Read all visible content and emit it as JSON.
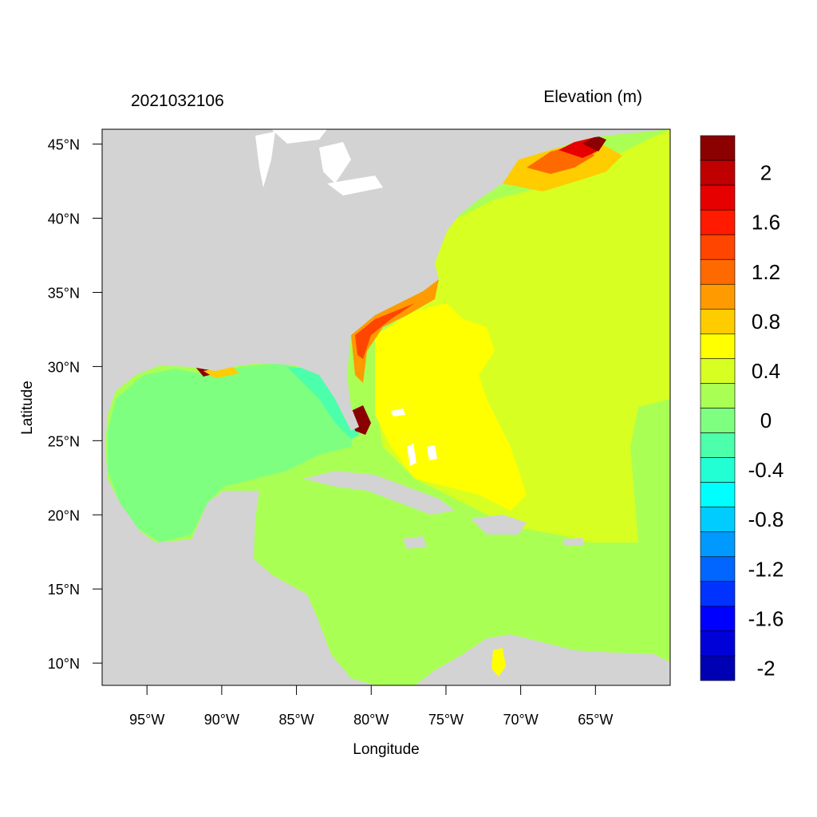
{
  "figure": {
    "title_left": "2021032106",
    "title_right": "Elevation (m)",
    "xlabel": "Longitude",
    "ylabel": "Latitude"
  },
  "map": {
    "lon_range": [
      -98,
      -60
    ],
    "lat_range": [
      8.5,
      46
    ],
    "x_ticks": [
      {
        "lon": -95,
        "label": "95°W"
      },
      {
        "lon": -90,
        "label": "90°W"
      },
      {
        "lon": -85,
        "label": "85°W"
      },
      {
        "lon": -80,
        "label": "80°W"
      },
      {
        "lon": -75,
        "label": "75°W"
      },
      {
        "lon": -70,
        "label": "70°W"
      },
      {
        "lon": -65,
        "label": "65°W"
      }
    ],
    "y_ticks": [
      {
        "lat": 45,
        "label": "45°N"
      },
      {
        "lat": 40,
        "label": "40°N"
      },
      {
        "lat": 35,
        "label": "35°N"
      },
      {
        "lat": 30,
        "label": "30°N"
      },
      {
        "lat": 25,
        "label": "25°N"
      },
      {
        "lat": 20,
        "label": "20°N"
      },
      {
        "lat": 15,
        "label": "15°N"
      },
      {
        "lat": 10,
        "label": "10°N"
      }
    ],
    "land_color": "#d3d3d3",
    "water_default_color": "#aaff55"
  },
  "colorbar": {
    "levels_top_to_bottom": [
      {
        "color": "#8b0000",
        "label": ""
      },
      {
        "color": "#c00000",
        "label": "2"
      },
      {
        "color": "#e60000",
        "label": ""
      },
      {
        "color": "#ff1a00",
        "label": "1.6"
      },
      {
        "color": "#ff4500",
        "label": ""
      },
      {
        "color": "#ff6a00",
        "label": "1.2"
      },
      {
        "color": "#ff9a00",
        "label": ""
      },
      {
        "color": "#ffcc00",
        "label": "0.8"
      },
      {
        "color": "#ffff00",
        "label": ""
      },
      {
        "color": "#d8ff22",
        "label": "0.4"
      },
      {
        "color": "#aaff55",
        "label": ""
      },
      {
        "color": "#7fff7f",
        "label": "0"
      },
      {
        "color": "#4cffaa",
        "label": ""
      },
      {
        "color": "#22ffd4",
        "label": "-0.4"
      },
      {
        "color": "#00ffff",
        "label": ""
      },
      {
        "color": "#00ccff",
        "label": "-0.8"
      },
      {
        "color": "#0099ff",
        "label": ""
      },
      {
        "color": "#0066ff",
        "label": "-1.2"
      },
      {
        "color": "#0033ff",
        "label": ""
      },
      {
        "color": "#0000ff",
        "label": "-1.6"
      },
      {
        "color": "#0000d9",
        "label": ""
      },
      {
        "color": "#0000b3",
        "label": "-2"
      }
    ]
  }
}
